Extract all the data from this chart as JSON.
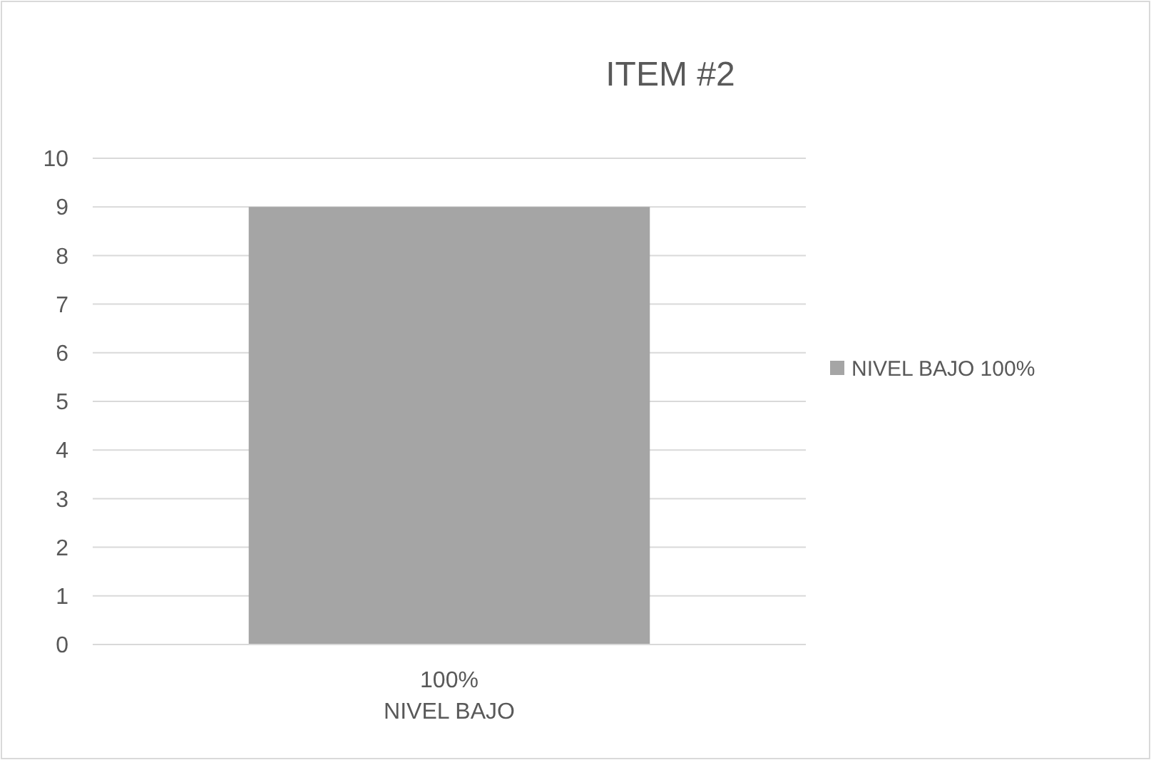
{
  "chart_data": {
    "type": "bar",
    "title": "ITEM #2",
    "categories": [
      "100%\nNIVEL BAJO"
    ],
    "series": [
      {
        "name": "NIVEL BAJO 100%",
        "color": "#a5a5a5",
        "values": [
          9
        ]
      }
    ],
    "ylim": [
      0,
      10
    ],
    "yticks": [
      0,
      1,
      2,
      3,
      4,
      5,
      6,
      7,
      8,
      9,
      10
    ],
    "grid": "y",
    "legend": "right"
  }
}
